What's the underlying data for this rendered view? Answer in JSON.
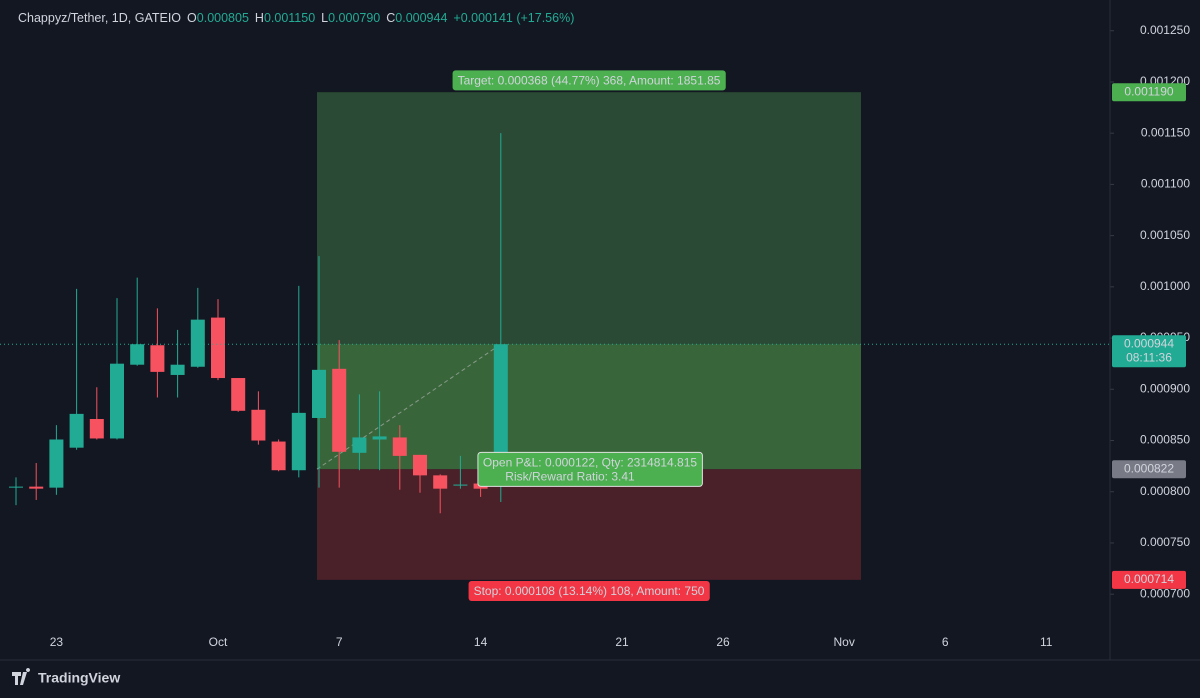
{
  "chart_data": {
    "type": "candlestick",
    "header": {
      "symbol": "Chappyz/Tether, 1D, GATEIO",
      "items": [
        {
          "key": "O",
          "value": "0.000805"
        },
        {
          "key": "H",
          "value": "0.001150"
        },
        {
          "key": "L",
          "value": "0.000790"
        },
        {
          "key": "C",
          "value": "0.000944"
        }
      ],
      "change": "+0.000141 (+17.56%)"
    },
    "categories": [
      null,
      null,
      "23",
      null,
      null,
      null,
      null,
      null,
      null,
      null,
      "Oct",
      null,
      null,
      null,
      null,
      null,
      "7",
      null,
      null,
      null,
      null,
      null,
      null,
      "14",
      null,
      null,
      null,
      null,
      null,
      null,
      "21",
      null,
      null,
      null,
      null,
      "26",
      null,
      null,
      null,
      null,
      null,
      "Nov",
      null,
      null,
      null,
      null,
      "6",
      null,
      null,
      null,
      null,
      "11",
      null,
      null,
      null
    ],
    "open": [
      0.000804,
      0.000805,
      0.000804,
      0.000843,
      0.000871,
      0.000852,
      0.000924,
      0.000943,
      0.000914,
      0.000922,
      0.00097,
      0.000911,
      0.00088,
      0.000849,
      0.000821,
      0.000872,
      0.00092,
      0.000838,
      0.000851,
      0.000853,
      0.000836,
      0.000816,
      0.000806,
      0.000808,
      0.000805,
      null,
      null,
      null,
      null,
      null,
      null,
      null,
      null,
      null,
      null,
      null,
      null,
      null,
      null,
      null,
      null,
      null,
      null,
      null,
      null,
      null,
      null,
      null,
      null,
      null,
      null,
      null,
      null,
      null,
      null
    ],
    "high": [
      0.000814,
      0.000828,
      0.000865,
      0.000998,
      0.000902,
      0.000989,
      0.001009,
      0.000979,
      0.000958,
      0.000999,
      0.000988,
      0.000911,
      0.000898,
      0.000851,
      0.001001,
      0.00103,
      0.000948,
      0.000895,
      0.000898,
      0.000865,
      0.000836,
      0.000817,
      0.000835,
      0.000808,
      0.00115,
      null,
      null,
      null,
      null,
      null,
      null,
      null,
      null,
      null,
      null,
      null,
      null,
      null,
      null,
      null,
      null,
      null,
      null,
      null,
      null,
      null,
      null,
      null,
      null,
      null,
      null,
      null,
      null,
      null,
      null
    ],
    "low": [
      0.000787,
      0.000792,
      0.000797,
      0.000841,
      0.000851,
      0.000851,
      0.000923,
      0.000892,
      0.000892,
      0.000921,
      0.000909,
      0.000878,
      0.000846,
      0.00082,
      0.000814,
      0.000804,
      0.000804,
      0.000821,
      0.000821,
      0.000802,
      0.000799,
      0.000779,
      0.000803,
      0.000795,
      0.00079,
      null,
      null,
      null,
      null,
      null,
      null,
      null,
      null,
      null,
      null,
      null,
      null,
      null,
      null,
      null,
      null,
      null,
      null,
      null,
      null,
      null,
      null,
      null,
      null,
      null,
      null,
      null,
      null,
      null,
      null
    ],
    "close": [
      0.000805,
      0.000803,
      0.000851,
      0.000876,
      0.000852,
      0.000925,
      0.000944,
      0.000917,
      0.000924,
      0.000968,
      0.000911,
      0.000879,
      0.00085,
      0.000821,
      0.000877,
      0.000919,
      0.000839,
      0.000853,
      0.000854,
      0.000835,
      0.000816,
      0.000803,
      0.000807,
      0.000803,
      0.000944,
      null,
      null,
      null,
      null,
      null,
      null,
      null,
      null,
      null,
      null,
      null,
      null,
      null,
      null,
      null,
      null,
      null,
      null,
      null,
      null,
      null,
      null,
      null,
      null,
      null,
      null,
      null,
      null,
      null,
      null
    ],
    "up_color": "#22ab94",
    "down_color": "#f7525f",
    "ylim": [
      0.000667,
      0.00128
    ],
    "yticks": [
      {
        "value": 0.0007,
        "label": "0.000700"
      },
      {
        "value": 0.00075,
        "label": "0.000750"
      },
      {
        "value": 0.0008,
        "label": "0.000800"
      },
      {
        "value": 0.00085,
        "label": "0.000850"
      },
      {
        "value": 0.0009,
        "label": "0.000900"
      },
      {
        "value": 0.00095,
        "label": "0.000950"
      },
      {
        "value": 0.001,
        "label": "0.001000"
      },
      {
        "value": 0.00105,
        "label": "0.001050"
      },
      {
        "value": 0.0011,
        "label": "0.001100"
      },
      {
        "value": 0.00115,
        "label": "0.001150"
      },
      {
        "value": 0.0012,
        "label": "0.001200"
      },
      {
        "value": 0.00125,
        "label": "0.001250"
      }
    ],
    "last_price": {
      "value": 0.000944,
      "countdown": "08:11:36"
    },
    "position": {
      "entry": 0.000822,
      "target": {
        "value": 0.00119,
        "label": "0.001190"
      },
      "stop": 0.000714,
      "target_text": "Target: 0.000368 (44.77%) 368, Amount: 1851.85",
      "stop_text": "Stop: 0.000108 (13.14%) 108, Amount: 750",
      "pnl_text": "Open P&L: 0.000122, Qty: 2314814.815",
      "ratio_text": "Risk/Reward Ratio: 3.41"
    },
    "brand": "TradingView"
  }
}
